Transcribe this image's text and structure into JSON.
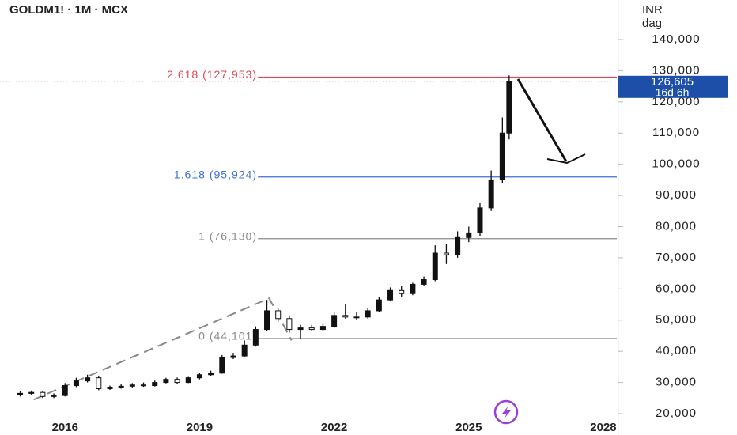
{
  "chart_data": {
    "type": "candlestick",
    "title": "GOLDM1! · 1M · MCX",
    "currency": "INR",
    "unit": "dag",
    "x": [
      2015.0,
      2015.25,
      2015.5,
      2015.75,
      2016.0,
      2016.25,
      2016.5,
      2016.75,
      2017.0,
      2017.25,
      2017.5,
      2017.75,
      2018.0,
      2018.25,
      2018.5,
      2018.75,
      2019.0,
      2019.25,
      2019.5,
      2019.75,
      2020.0,
      2020.25,
      2020.5,
      2020.75,
      2021.0,
      2021.25,
      2021.5,
      2021.75,
      2022.0,
      2022.25,
      2022.5,
      2022.75,
      2023.0,
      2023.25,
      2023.5,
      2023.75,
      2024.0,
      2024.25,
      2024.5,
      2024.75,
      2025.0,
      2025.25,
      2025.5,
      2025.75,
      2025.9
    ],
    "open": [
      26000,
      26500,
      26800,
      25500,
      25800,
      29000,
      30500,
      31500,
      28000,
      28500,
      28800,
      29200,
      29000,
      30000,
      31000,
      30000,
      31500,
      32500,
      33000,
      38000,
      38500,
      42000,
      47000,
      53000,
      50500,
      47000,
      47500,
      47000,
      48000,
      51500,
      51000,
      51000,
      53000,
      56500,
      59500,
      58500,
      61500,
      63000,
      71500,
      71000,
      76500,
      78000,
      86000,
      95000,
      110000
    ],
    "high": [
      27200,
      27400,
      27300,
      26500,
      29800,
      31500,
      32500,
      32200,
      29000,
      29500,
      29800,
      30000,
      30600,
      31500,
      31600,
      31800,
      33000,
      33800,
      38800,
      39500,
      43500,
      48000,
      56500,
      54000,
      51500,
      48500,
      48500,
      48800,
      52500,
      55000,
      52500,
      53800,
      57500,
      60500,
      61000,
      62000,
      64000,
      74000,
      74500,
      78500,
      80000,
      87500,
      98000,
      115000,
      128500
    ],
    "low": [
      25500,
      26000,
      25000,
      25000,
      25500,
      28500,
      30000,
      27500,
      27600,
      28000,
      28400,
      28600,
      28700,
      29700,
      29500,
      29800,
      31000,
      32000,
      32800,
      37500,
      38000,
      41500,
      46500,
      49500,
      46000,
      44000,
      46500,
      46500,
      47500,
      50500,
      50000,
      50500,
      52500,
      56000,
      57500,
      58000,
      61000,
      62500,
      68000,
      70000,
      75000,
      77000,
      85000,
      94000,
      108000
    ],
    "close": [
      26500,
      26800,
      25500,
      25800,
      29000,
      30500,
      31500,
      28000,
      28500,
      28800,
      29200,
      29000,
      30000,
      31000,
      30000,
      31500,
      32500,
      33000,
      38000,
      38500,
      42000,
      47000,
      53000,
      50500,
      47000,
      47500,
      47000,
      48000,
      51500,
      51000,
      51000,
      53000,
      56500,
      59500,
      58500,
      61500,
      63000,
      71500,
      71000,
      76500,
      78000,
      86000,
      95000,
      110000,
      126605
    ],
    "last_price": {
      "value": 126605,
      "label": "126,605"
    },
    "countdown": "16d 6h",
    "fib_levels": [
      {
        "label": "2.618 (127,953)",
        "value": 127953,
        "color": "#e04a55"
      },
      {
        "label": "1.618 (95,924)",
        "value": 95924,
        "color": "#3a6fd8"
      },
      {
        "label": "1 (76,130)",
        "value": 76130,
        "color": "#8a8a8a"
      },
      {
        "label": "0 (44,101)",
        "value": 44101,
        "color": "#8a8a8a"
      }
    ],
    "xlim": [
      2014.55,
      2028.3
    ],
    "xticks": [
      2016,
      2019,
      2022,
      2025,
      2028
    ],
    "ylim": [
      20000,
      140000
    ],
    "yticks": [
      {
        "value": 20000,
        "label": "20,000"
      },
      {
        "value": 30000,
        "label": "30,000"
      },
      {
        "value": 40000,
        "label": "40,000"
      },
      {
        "value": 50000,
        "label": "50,000"
      },
      {
        "value": 60000,
        "label": "60,000"
      },
      {
        "value": 70000,
        "label": "70,000"
      },
      {
        "value": 80000,
        "label": "80,000"
      },
      {
        "value": 90000,
        "label": "90,000"
      },
      {
        "value": 100000,
        "label": "100,000"
      },
      {
        "value": 110000,
        "label": "110,000"
      },
      {
        "value": 120000,
        "label": "120,000"
      },
      {
        "value": 130000,
        "label": "130,000"
      },
      {
        "value": 140000,
        "label": "140,000"
      }
    ],
    "color": "#111111"
  }
}
